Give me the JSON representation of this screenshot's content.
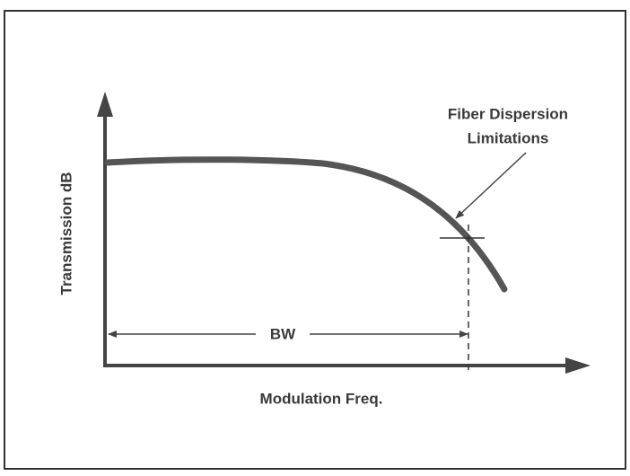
{
  "axes": {
    "y_label": "Transmission dB",
    "x_label": "Modulation Freq."
  },
  "bandwidth_label": "BW",
  "annotation": {
    "lines": [
      "Fiber Dispersion",
      "Limitations"
    ]
  }
}
